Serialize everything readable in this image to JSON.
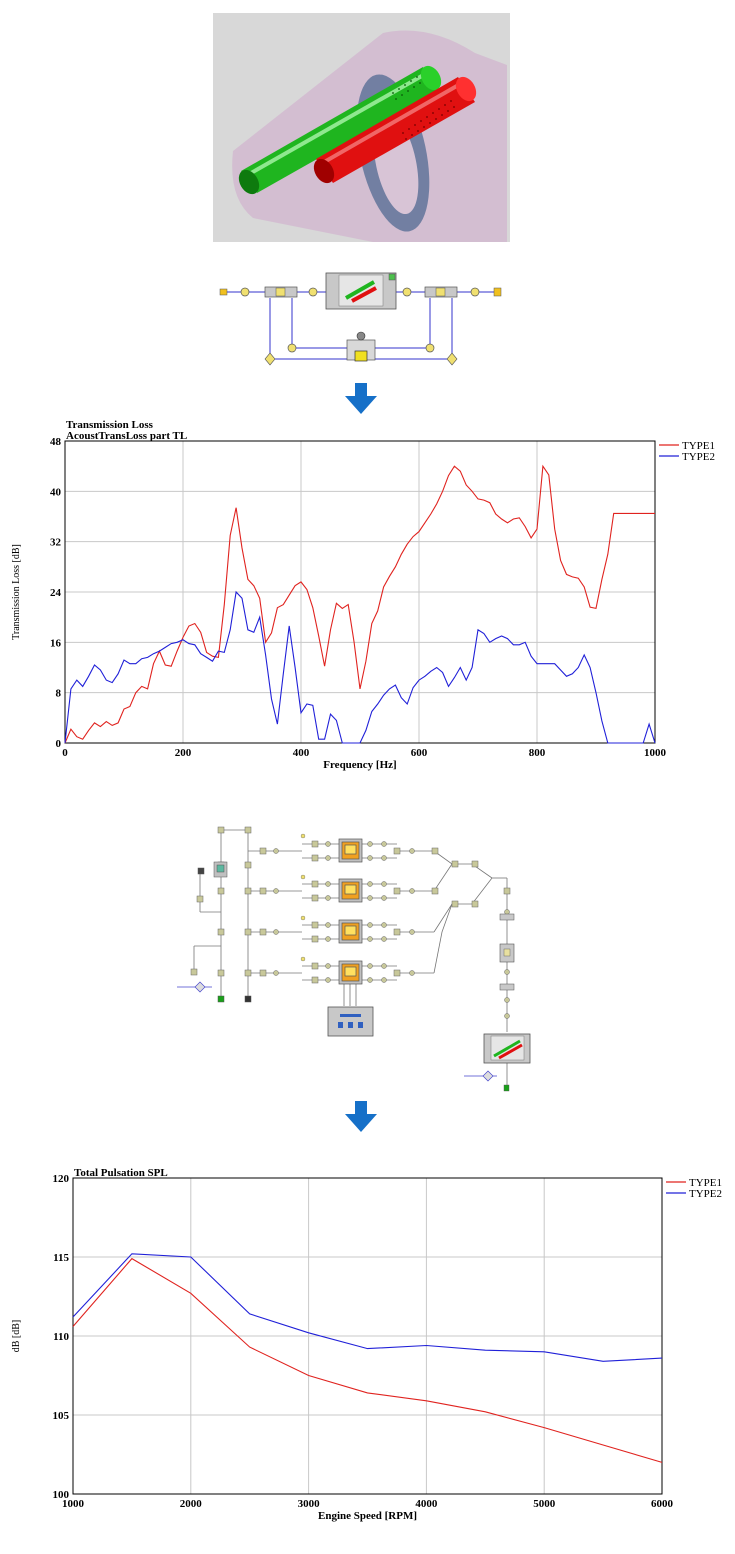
{
  "colors": {
    "type1": "#e0231f",
    "type2": "#2020d8",
    "arrow": "#1670c8",
    "grid": "#c8c8c8"
  },
  "chart_data": [
    {
      "type": "line",
      "title": "Transmission Loss",
      "subtitle": "AcoustTransLoss part TL",
      "xlabel": "Frequency [Hz]",
      "ylabel": "Transmission Loss [dB]",
      "xlim": [
        0,
        1000
      ],
      "ylim": [
        0,
        48
      ],
      "xticks": [
        "0",
        "200",
        "400",
        "600",
        "800",
        "1000"
      ],
      "yticks": [
        "0",
        "8",
        "16",
        "24",
        "32",
        "40",
        "48"
      ],
      "grid": "vertical",
      "legend": "top-right",
      "series": [
        {
          "name": "TYPE1",
          "x": [
            0,
            10,
            20,
            30,
            40,
            50,
            60,
            70,
            80,
            90,
            100,
            110,
            120,
            130,
            140,
            150,
            160,
            170,
            180,
            190,
            200,
            210,
            220,
            230,
            240,
            250,
            260,
            270,
            280,
            290,
            300,
            310,
            320,
            330,
            340,
            350,
            360,
            370,
            380,
            390,
            400,
            410,
            420,
            430,
            440,
            450,
            460,
            470,
            480,
            490,
            500,
            510,
            520,
            530,
            540,
            550,
            560,
            570,
            580,
            590,
            600,
            610,
            620,
            630,
            640,
            650,
            660,
            670,
            680,
            690,
            700,
            710,
            720,
            730,
            740,
            750,
            760,
            770,
            780,
            790,
            800,
            810,
            820,
            830,
            840,
            850,
            860,
            870,
            880,
            890,
            900,
            910,
            920,
            930,
            940,
            950,
            960,
            970,
            980,
            990,
            1000
          ],
          "y": [
            0,
            2.2,
            1.0,
            0.6,
            2.0,
            3.2,
            2.6,
            3.4,
            2.8,
            3.2,
            5.4,
            5.8,
            8.0,
            9.0,
            8.6,
            12.6,
            14.6,
            12.4,
            12.2,
            14.6,
            16.8,
            18.6,
            19.0,
            17.6,
            14.4,
            13.8,
            13.6,
            22.0,
            33.0,
            37.4,
            31.0,
            26.0,
            25.0,
            23.0,
            16.0,
            17.5,
            21.5,
            22.0,
            23.5,
            25.0,
            25.6,
            24.4,
            21.5,
            17.0,
            12.2,
            18.0,
            22.2,
            21.4,
            22.0,
            16.0,
            8.6,
            13.0,
            19.0,
            21.0,
            24.8,
            26.5,
            28.0,
            30.0,
            31.6,
            32.8,
            33.6,
            35.0,
            36.4,
            38.0,
            40.0,
            42.5,
            44.0,
            43.2,
            41.0,
            40.0,
            38.8,
            38.6,
            38.2,
            36.4,
            35.6,
            35.0,
            35.6,
            35.8,
            34.4,
            32.6,
            34.0,
            44.0,
            42.6,
            34.0,
            29.0,
            26.8,
            26.4,
            26.2,
            24.8,
            21.6,
            21.4,
            26.0,
            30.0,
            36.5,
            36.5,
            36.5,
            36.5,
            36.5,
            36.5,
            36.5,
            36.5
          ]
        },
        {
          "name": "TYPE2",
          "x": [
            0,
            10,
            20,
            30,
            40,
            50,
            60,
            70,
            80,
            90,
            100,
            110,
            120,
            130,
            140,
            150,
            160,
            170,
            180,
            190,
            200,
            210,
            220,
            230,
            240,
            250,
            260,
            270,
            280,
            290,
            300,
            310,
            320,
            330,
            340,
            350,
            360,
            370,
            380,
            390,
            400,
            410,
            420,
            430,
            440,
            450,
            460,
            470,
            480,
            490,
            500,
            510,
            520,
            530,
            540,
            550,
            560,
            570,
            580,
            590,
            600,
            610,
            620,
            630,
            640,
            650,
            660,
            670,
            680,
            690,
            700,
            710,
            720,
            730,
            740,
            750,
            760,
            770,
            780,
            790,
            800,
            810,
            820,
            830,
            840,
            850,
            860,
            870,
            880,
            890,
            900,
            910,
            920,
            930,
            940,
            950,
            960,
            970,
            980,
            990,
            1000
          ],
          "y": [
            0,
            8.6,
            10.0,
            9.0,
            10.6,
            12.4,
            11.6,
            10.0,
            9.6,
            11.0,
            13.2,
            12.6,
            12.6,
            13.4,
            13.6,
            14.2,
            14.6,
            15.2,
            15.8,
            16.0,
            16.4,
            15.8,
            15.6,
            14.2,
            13.6,
            13.0,
            14.6,
            14.4,
            18.0,
            24.0,
            23.0,
            18.0,
            17.6,
            20.0,
            14.0,
            7.0,
            3.0,
            11.0,
            18.6,
            12.0,
            4.8,
            6.2,
            6.0,
            0.6,
            0.6,
            4.6,
            3.6,
            0,
            0,
            0,
            0,
            2.0,
            5.0,
            6.2,
            7.6,
            8.6,
            9.2,
            7.2,
            6.2,
            8.8,
            10.0,
            10.6,
            11.4,
            12.0,
            11.2,
            9.0,
            10.4,
            12.0,
            10.0,
            12.0,
            18.0,
            17.4,
            16.0,
            16.6,
            17.0,
            16.6,
            15.6,
            15.6,
            16.0,
            13.8,
            12.6,
            12.6,
            12.6,
            12.6,
            11.6,
            10.6,
            11.0,
            12.0,
            14.0,
            12.0,
            8.0,
            3.5,
            0,
            0,
            0,
            0,
            0,
            0,
            0,
            3.0,
            0
          ]
        }
      ]
    },
    {
      "type": "line",
      "title": "Total Pulsation SPL",
      "xlabel": "Engine Speed [RPM]",
      "ylabel": "dB [dB]",
      "xlim": [
        1000,
        6000
      ],
      "ylim": [
        100,
        120
      ],
      "xticks": [
        "1000",
        "2000",
        "3000",
        "4000",
        "5000",
        "6000"
      ],
      "yticks": [
        "100",
        "105",
        "110",
        "115",
        "120"
      ],
      "grid": "both",
      "legend": "top-right",
      "series": [
        {
          "name": "TYPE1",
          "x": [
            1000,
            1500,
            2000,
            2500,
            3000,
            3500,
            4000,
            4500,
            5000,
            5500,
            6000
          ],
          "y": [
            110.6,
            114.9,
            112.7,
            109.3,
            107.5,
            106.4,
            105.9,
            105.2,
            104.2,
            103.1,
            102.0
          ]
        },
        {
          "name": "TYPE2",
          "x": [
            1000,
            1500,
            2000,
            2500,
            3000,
            3500,
            4000,
            4500,
            5000,
            5500,
            6000
          ],
          "y": [
            111.2,
            115.2,
            115.0,
            111.4,
            110.2,
            109.2,
            109.4,
            109.1,
            109.0,
            108.4,
            108.6
          ]
        }
      ]
    }
  ]
}
